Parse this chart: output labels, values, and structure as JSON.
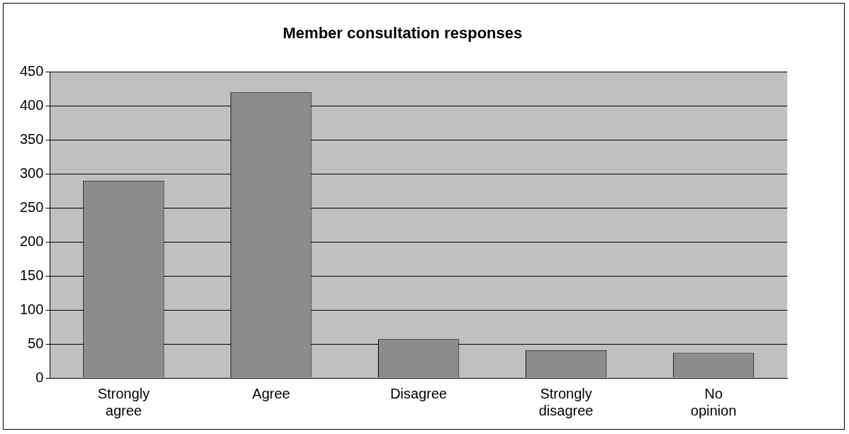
{
  "chart_data": {
    "type": "bar",
    "title": "Member consultation responses",
    "categories": [
      "Strongly agree",
      "Agree",
      "Disagree",
      "Strongly disagree",
      "No opinion"
    ],
    "values": [
      290,
      420,
      57,
      41,
      37
    ],
    "color": "#8c8c8c",
    "ylim": [
      0,
      450
    ],
    "yticks": [
      0,
      50,
      100,
      150,
      200,
      250,
      300,
      350,
      400,
      450
    ],
    "grid": "y",
    "legend": false
  }
}
